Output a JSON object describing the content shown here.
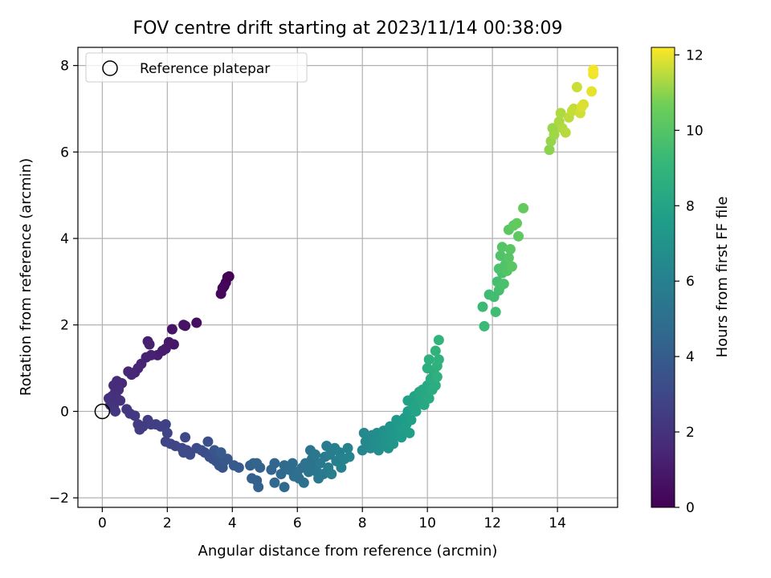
{
  "chart_data": {
    "type": "scatter",
    "title": "FOV centre drift starting at 2023/11/14 00:38:09",
    "xlabel": "Angular distance from reference (arcmin)",
    "ylabel": "Rotation from reference (arcmin)",
    "xlim": [
      -0.75,
      15.85
    ],
    "ylim": [
      -2.22,
      8.42
    ],
    "xticks": [
      0,
      2,
      4,
      6,
      8,
      10,
      12,
      14
    ],
    "yticks": [
      -2,
      0,
      2,
      4,
      6,
      8
    ],
    "grid": true,
    "legend": {
      "placement": "top-left",
      "entries": [
        "Reference platepar"
      ]
    },
    "reference_point": {
      "x": 0,
      "y": 0,
      "label": "Reference platepar"
    },
    "colorbar": {
      "label": "Hours from first FF file",
      "colormap": "viridis",
      "range": [
        0,
        12.2
      ],
      "ticks": [
        0,
        2,
        4,
        6,
        8,
        10,
        12
      ]
    },
    "points": [
      [
        3.9,
        3.12,
        0.0
      ],
      [
        3.85,
        3.1,
        0.05
      ],
      [
        3.8,
        2.98,
        0.1
      ],
      [
        3.75,
        2.9,
        0.15
      ],
      [
        3.7,
        2.85,
        0.2
      ],
      [
        3.65,
        2.72,
        0.25
      ],
      [
        2.9,
        2.05,
        0.5
      ],
      [
        2.55,
        1.98,
        0.6
      ],
      [
        2.5,
        2.0,
        0.65
      ],
      [
        2.15,
        1.9,
        0.75
      ],
      [
        2.2,
        1.55,
        0.85
      ],
      [
        2.05,
        1.6,
        0.9
      ],
      [
        1.95,
        1.45,
        1.0
      ],
      [
        1.85,
        1.4,
        1.05
      ],
      [
        1.7,
        1.3,
        1.1
      ],
      [
        1.4,
        1.62,
        1.15
      ],
      [
        1.45,
        1.55,
        1.2
      ],
      [
        1.5,
        1.3,
        1.25
      ],
      [
        1.35,
        1.25,
        1.3
      ],
      [
        1.2,
        1.1,
        1.35
      ],
      [
        1.1,
        1.0,
        1.4
      ],
      [
        1.0,
        0.9,
        1.45
      ],
      [
        0.8,
        0.92,
        1.5
      ],
      [
        0.9,
        0.85,
        1.55
      ],
      [
        0.6,
        0.65,
        1.6
      ],
      [
        0.45,
        0.7,
        1.65
      ],
      [
        0.35,
        0.6,
        1.7
      ],
      [
        0.5,
        0.5,
        1.75
      ],
      [
        0.4,
        0.45,
        1.8
      ],
      [
        0.3,
        0.35,
        1.85
      ],
      [
        0.45,
        0.3,
        1.9
      ],
      [
        0.2,
        0.3,
        1.95
      ],
      [
        0.55,
        0.25,
        2.0
      ],
      [
        0.25,
        0.15,
        2.05
      ],
      [
        0.35,
        0.1,
        2.1
      ],
      [
        0.4,
        0.0,
        2.15
      ],
      [
        0.75,
        0.05,
        2.2
      ],
      [
        0.85,
        -0.05,
        2.25
      ],
      [
        1.0,
        -0.1,
        2.3
      ],
      [
        1.1,
        -0.3,
        2.35
      ],
      [
        1.25,
        -0.35,
        2.4
      ],
      [
        1.15,
        -0.42,
        2.45
      ],
      [
        1.4,
        -0.2,
        2.5
      ],
      [
        1.5,
        -0.3,
        2.55
      ],
      [
        1.65,
        -0.3,
        2.6
      ],
      [
        1.8,
        -0.35,
        2.65
      ],
      [
        1.95,
        -0.3,
        2.7
      ],
      [
        2.0,
        -0.5,
        2.75
      ],
      [
        1.95,
        -0.7,
        2.8
      ],
      [
        2.1,
        -0.75,
        2.85
      ],
      [
        2.25,
        -0.8,
        2.9
      ],
      [
        2.45,
        -0.85,
        2.95
      ],
      [
        2.55,
        -0.6,
        3.0
      ],
      [
        2.6,
        -0.9,
        3.05
      ],
      [
        2.7,
        -1.0,
        3.1
      ],
      [
        2.5,
        -0.95,
        3.15
      ],
      [
        2.9,
        -0.85,
        3.2
      ],
      [
        3.05,
        -0.9,
        3.25
      ],
      [
        3.15,
        -0.95,
        3.3
      ],
      [
        3.25,
        -0.7,
        3.35
      ],
      [
        3.3,
        -1.05,
        3.4
      ],
      [
        3.4,
        -1.1,
        3.45
      ],
      [
        3.5,
        -1.15,
        3.5
      ],
      [
        3.6,
        -1.25,
        3.55
      ],
      [
        3.7,
        -1.3,
        3.6
      ],
      [
        3.45,
        -0.9,
        3.65
      ],
      [
        3.55,
        -1.0,
        3.7
      ],
      [
        3.75,
        -1.15,
        3.75
      ],
      [
        3.85,
        -1.1,
        3.8
      ],
      [
        4.05,
        -1.25,
        3.85
      ],
      [
        4.2,
        -1.3,
        3.9
      ],
      [
        3.65,
        -0.95,
        3.95
      ],
      [
        4.55,
        -1.25,
        4.1
      ],
      [
        4.6,
        -1.55,
        4.15
      ],
      [
        4.75,
        -1.6,
        4.2
      ],
      [
        4.8,
        -1.75,
        4.25
      ],
      [
        4.65,
        -1.2,
        4.3
      ],
      [
        4.85,
        -1.3,
        4.35
      ],
      [
        4.75,
        -1.2,
        4.4
      ],
      [
        5.2,
        -1.35,
        4.5
      ],
      [
        5.3,
        -1.2,
        4.55
      ],
      [
        5.3,
        -1.65,
        4.6
      ],
      [
        5.5,
        -1.45,
        4.65
      ],
      [
        5.6,
        -1.75,
        4.7
      ],
      [
        5.6,
        -1.25,
        4.75
      ],
      [
        5.75,
        -1.35,
        4.8
      ],
      [
        5.85,
        -1.2,
        4.85
      ],
      [
        5.9,
        -1.5,
        4.9
      ],
      [
        6.0,
        -1.4,
        4.95
      ],
      [
        6.05,
        -1.55,
        5.0
      ],
      [
        6.15,
        -1.3,
        5.05
      ],
      [
        6.2,
        -1.65,
        5.1
      ],
      [
        6.25,
        -1.2,
        5.15
      ],
      [
        6.35,
        -1.4,
        5.2
      ],
      [
        6.4,
        -0.9,
        5.25
      ],
      [
        6.45,
        -1.1,
        5.3
      ],
      [
        6.5,
        -1.3,
        5.35
      ],
      [
        6.6,
        -1.4,
        5.4
      ],
      [
        6.55,
        -1.0,
        5.45
      ],
      [
        6.65,
        -1.55,
        5.5
      ],
      [
        6.7,
        -1.2,
        5.55
      ],
      [
        6.8,
        -1.45,
        5.6
      ],
      [
        6.85,
        -1.05,
        5.65
      ],
      [
        6.9,
        -0.8,
        5.7
      ],
      [
        6.95,
        -1.3,
        5.75
      ],
      [
        7.0,
        -1.0,
        5.8
      ],
      [
        7.05,
        -1.45,
        5.85
      ],
      [
        7.15,
        -0.85,
        5.9
      ],
      [
        7.2,
        -1.15,
        5.95
      ],
      [
        7.3,
        -0.95,
        6.0
      ],
      [
        7.35,
        -1.3,
        6.05
      ],
      [
        7.45,
        -1.1,
        6.1
      ],
      [
        7.55,
        -0.85,
        6.15
      ],
      [
        7.6,
        -1.05,
        6.2
      ],
      [
        8.0,
        -0.9,
        6.35
      ],
      [
        8.05,
        -0.5,
        6.4
      ],
      [
        8.1,
        -0.7,
        6.45
      ],
      [
        8.2,
        -0.6,
        6.5
      ],
      [
        8.25,
        -0.85,
        6.55
      ],
      [
        8.3,
        -0.55,
        6.6
      ],
      [
        8.4,
        -0.75,
        6.65
      ],
      [
        8.45,
        -0.5,
        6.7
      ],
      [
        8.5,
        -0.9,
        6.75
      ],
      [
        8.55,
        -0.65,
        6.8
      ],
      [
        8.6,
        -0.8,
        6.85
      ],
      [
        8.65,
        -0.45,
        6.9
      ],
      [
        8.7,
        -0.7,
        6.95
      ],
      [
        8.75,
        -0.55,
        7.0
      ],
      [
        8.8,
        -0.85,
        7.05
      ],
      [
        8.85,
        -0.35,
        7.1
      ],
      [
        8.9,
        -0.6,
        7.15
      ],
      [
        8.95,
        -0.75,
        7.2
      ],
      [
        9.0,
        -0.45,
        7.25
      ],
      [
        9.05,
        -0.2,
        7.3
      ],
      [
        9.1,
        -0.55,
        7.35
      ],
      [
        9.15,
        -0.35,
        7.4
      ],
      [
        9.2,
        -0.6,
        7.45
      ],
      [
        9.25,
        -0.4,
        7.5
      ],
      [
        9.3,
        -0.15,
        7.55
      ],
      [
        9.35,
        -0.3,
        7.6
      ],
      [
        9.4,
        0.0,
        7.65
      ],
      [
        9.45,
        -0.5,
        7.7
      ],
      [
        9.5,
        -0.2,
        7.75
      ],
      [
        9.4,
        0.25,
        7.8
      ],
      [
        9.55,
        0.1,
        7.85
      ],
      [
        9.6,
        0.35,
        7.9
      ],
      [
        9.65,
        0.0,
        7.95
      ],
      [
        9.7,
        0.2,
        8.0
      ],
      [
        9.75,
        0.45,
        8.05
      ],
      [
        9.8,
        0.3,
        8.1
      ],
      [
        9.85,
        0.5,
        8.15
      ],
      [
        9.9,
        0.15,
        8.2
      ],
      [
        9.95,
        0.4,
        8.25
      ],
      [
        10.0,
        0.6,
        8.3
      ],
      [
        10.05,
        0.3,
        8.35
      ],
      [
        10.1,
        0.75,
        8.4
      ],
      [
        10.15,
        0.5,
        8.45
      ],
      [
        10.2,
        0.9,
        8.5
      ],
      [
        10.25,
        0.6,
        8.55
      ],
      [
        10.0,
        1.0,
        8.6
      ],
      [
        10.05,
        1.2,
        8.65
      ],
      [
        10.3,
        0.8,
        8.7
      ],
      [
        10.3,
        1.05,
        8.75
      ],
      [
        10.35,
        1.2,
        8.8
      ],
      [
        10.25,
        1.4,
        8.85
      ],
      [
        10.35,
        1.65,
        8.9
      ],
      [
        11.75,
        1.97,
        9.3
      ],
      [
        11.7,
        2.42,
        9.35
      ],
      [
        11.9,
        2.7,
        9.4
      ],
      [
        12.1,
        2.3,
        9.45
      ],
      [
        12.05,
        2.65,
        9.5
      ],
      [
        12.2,
        2.8,
        9.55
      ],
      [
        12.15,
        3.0,
        9.6
      ],
      [
        12.25,
        2.9,
        9.65
      ],
      [
        12.3,
        3.2,
        9.7
      ],
      [
        12.35,
        2.95,
        9.75
      ],
      [
        12.2,
        3.3,
        9.8
      ],
      [
        12.4,
        3.4,
        9.85
      ],
      [
        12.25,
        3.6,
        9.9
      ],
      [
        12.45,
        3.25,
        9.95
      ],
      [
        12.3,
        3.8,
        10.0
      ],
      [
        12.5,
        3.55,
        10.05
      ],
      [
        12.55,
        3.75,
        10.1
      ],
      [
        12.6,
        3.35,
        10.15
      ],
      [
        12.5,
        4.2,
        10.2
      ],
      [
        12.65,
        4.3,
        10.25
      ],
      [
        12.8,
        4.05,
        10.3
      ],
      [
        12.75,
        4.35,
        10.35
      ],
      [
        12.95,
        4.7,
        10.4
      ],
      [
        13.75,
        6.05,
        11.0
      ],
      [
        13.8,
        6.25,
        11.1
      ],
      [
        13.85,
        6.55,
        11.15
      ],
      [
        13.9,
        6.4,
        11.2
      ],
      [
        14.05,
        6.7,
        11.3
      ],
      [
        14.1,
        6.9,
        11.35
      ],
      [
        14.15,
        6.55,
        11.4
      ],
      [
        14.25,
        6.45,
        11.45
      ],
      [
        14.35,
        6.8,
        11.5
      ],
      [
        14.5,
        7.0,
        11.55
      ],
      [
        14.45,
        6.95,
        11.6
      ],
      [
        14.6,
        7.5,
        11.65
      ],
      [
        14.7,
        6.9,
        11.7
      ],
      [
        14.8,
        7.1,
        11.8
      ],
      [
        14.75,
        7.05,
        11.85
      ],
      [
        15.05,
        7.4,
        11.95
      ],
      [
        15.1,
        7.8,
        12.05
      ],
      [
        15.1,
        7.9,
        12.1
      ]
    ]
  }
}
